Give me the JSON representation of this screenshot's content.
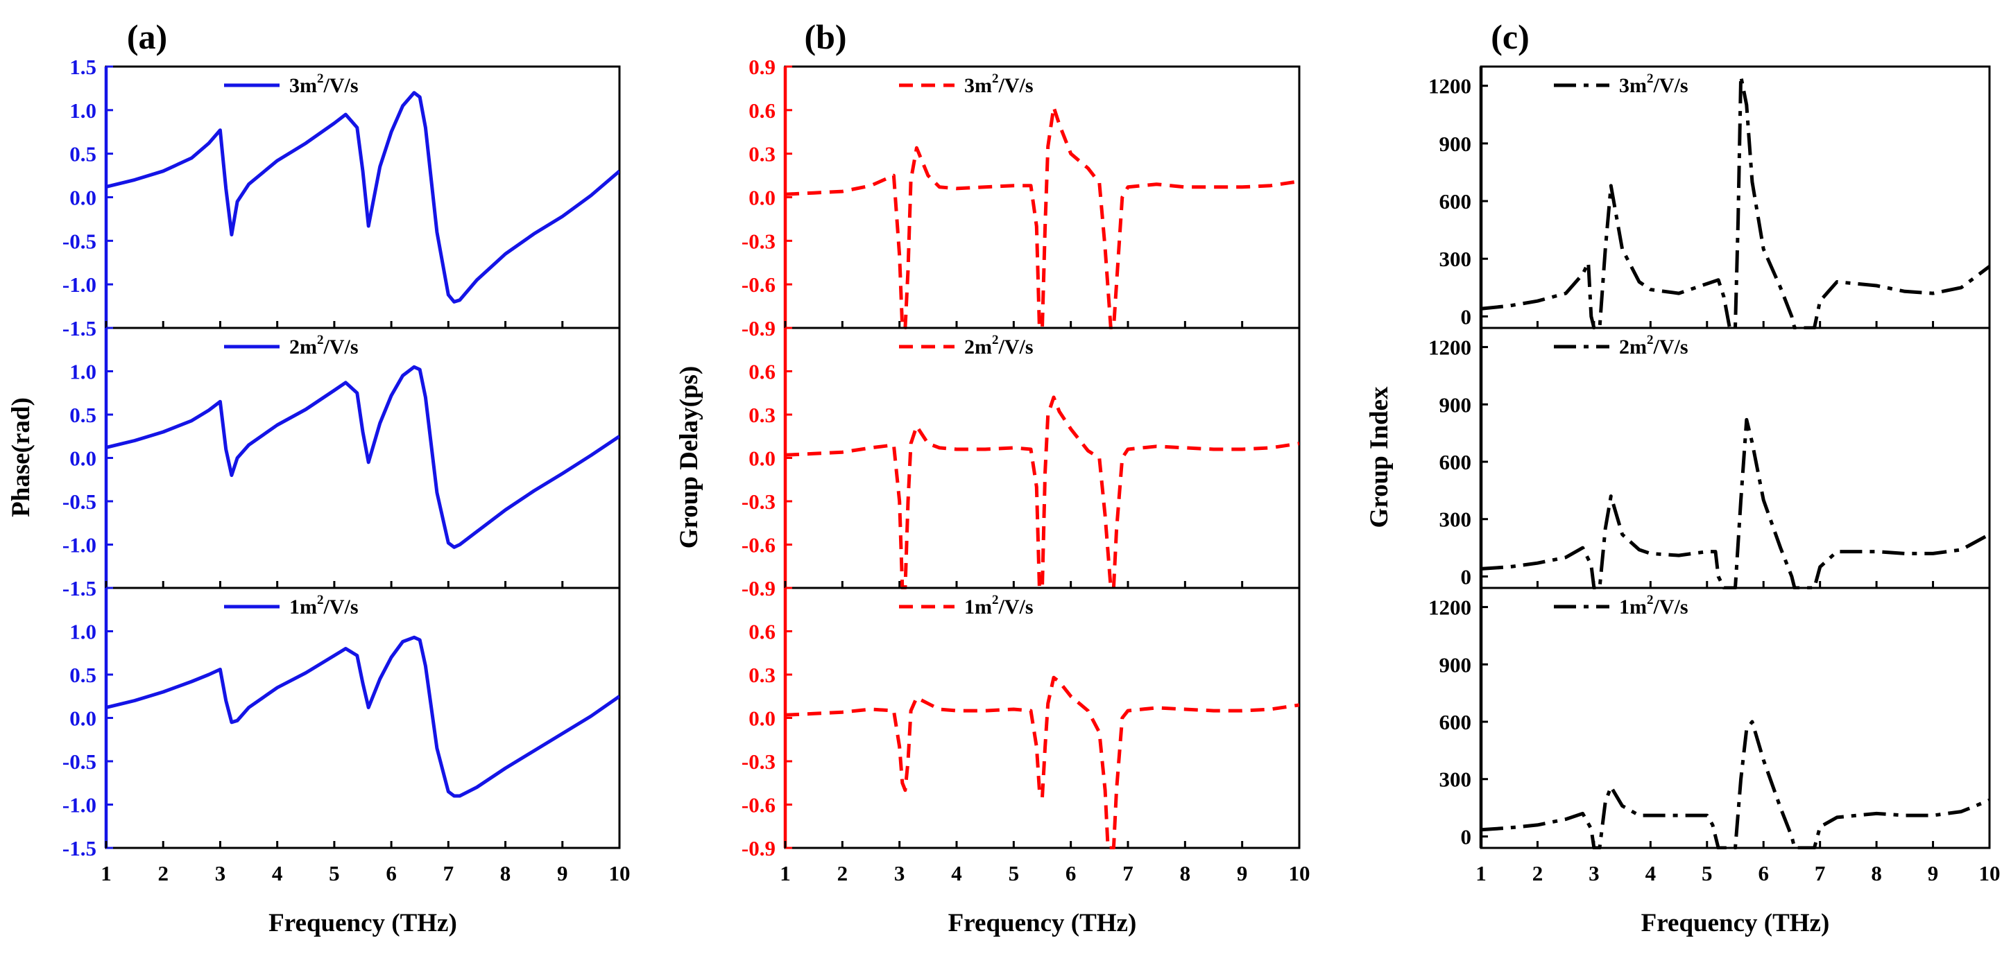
{
  "chart_data": [
    {
      "type": "line",
      "panel_label": "(a)",
      "xlabel": "Frequency (THz)",
      "ylabel": "Phase(rad)",
      "color": "#1414e6",
      "dash": "solid",
      "xlim": [
        1,
        10
      ],
      "ylim": [
        -1.5,
        1.5
      ],
      "xticks": [
        "1",
        "2",
        "3",
        "4",
        "5",
        "6",
        "7",
        "8",
        "9",
        "10"
      ],
      "yticks": [
        "-1.5",
        "-1.0",
        "-0.5",
        "0.0",
        "0.5",
        "1.0",
        "1.5"
      ],
      "yvals": [
        -1.5,
        -1.0,
        -0.5,
        0.0,
        0.5,
        1.0,
        1.5
      ],
      "subplots": [
        {
          "legend": {
            "main": "3m",
            "sup": "2",
            "rest": "/V/s"
          },
          "x": [
            1.0,
            1.5,
            2.0,
            2.5,
            2.8,
            3.0,
            3.1,
            3.2,
            3.3,
            3.5,
            4.0,
            4.5,
            5.0,
            5.2,
            5.4,
            5.5,
            5.6,
            5.8,
            6.0,
            6.2,
            6.4,
            6.5,
            6.6,
            6.8,
            7.0,
            7.1,
            7.2,
            7.5,
            8.0,
            8.5,
            9.0,
            9.5,
            10.0
          ],
          "y": [
            0.12,
            0.2,
            0.3,
            0.45,
            0.62,
            0.77,
            0.1,
            -0.43,
            -0.05,
            0.15,
            0.42,
            0.62,
            0.85,
            0.95,
            0.8,
            0.3,
            -0.33,
            0.35,
            0.75,
            1.05,
            1.2,
            1.15,
            0.8,
            -0.4,
            -1.12,
            -1.2,
            -1.18,
            -0.95,
            -0.65,
            -0.42,
            -0.22,
            0.02,
            0.3
          ]
        },
        {
          "legend": {
            "main": "2m",
            "sup": "2",
            "rest": "/V/s"
          },
          "x": [
            1.0,
            1.5,
            2.0,
            2.5,
            2.8,
            3.0,
            3.1,
            3.2,
            3.3,
            3.5,
            4.0,
            4.5,
            5.0,
            5.2,
            5.4,
            5.5,
            5.6,
            5.8,
            6.0,
            6.2,
            6.4,
            6.5,
            6.6,
            6.8,
            7.0,
            7.1,
            7.2,
            7.5,
            8.0,
            8.5,
            9.0,
            9.5,
            10.0
          ],
          "y": [
            0.12,
            0.2,
            0.3,
            0.43,
            0.55,
            0.65,
            0.1,
            -0.2,
            0.0,
            0.15,
            0.38,
            0.56,
            0.78,
            0.87,
            0.75,
            0.3,
            -0.05,
            0.4,
            0.72,
            0.95,
            1.05,
            1.02,
            0.7,
            -0.4,
            -0.98,
            -1.03,
            -1.0,
            -0.85,
            -0.6,
            -0.38,
            -0.18,
            0.03,
            0.25
          ]
        },
        {
          "legend": {
            "main": "1m",
            "sup": "2",
            "rest": "/V/s"
          },
          "x": [
            1.0,
            1.5,
            2.0,
            2.5,
            2.8,
            3.0,
            3.1,
            3.2,
            3.3,
            3.5,
            4.0,
            4.5,
            5.0,
            5.2,
            5.4,
            5.5,
            5.6,
            5.8,
            6.0,
            6.2,
            6.4,
            6.5,
            6.6,
            6.8,
            7.0,
            7.1,
            7.2,
            7.5,
            8.0,
            8.5,
            9.0,
            9.5,
            10.0
          ],
          "y": [
            0.12,
            0.2,
            0.3,
            0.42,
            0.5,
            0.56,
            0.2,
            -0.05,
            -0.03,
            0.12,
            0.35,
            0.52,
            0.72,
            0.8,
            0.72,
            0.4,
            0.12,
            0.45,
            0.7,
            0.88,
            0.93,
            0.9,
            0.6,
            -0.35,
            -0.85,
            -0.9,
            -0.9,
            -0.8,
            -0.58,
            -0.38,
            -0.18,
            0.02,
            0.25
          ]
        }
      ]
    },
    {
      "type": "line",
      "panel_label": "(b)",
      "xlabel": "Frequency (THz)",
      "ylabel": "Group Delay(ps)",
      "color": "#ff0000",
      "dash": "dashed",
      "xlim": [
        1,
        10
      ],
      "ylim": [
        -0.9,
        0.9
      ],
      "xticks": [
        "1",
        "2",
        "3",
        "4",
        "5",
        "6",
        "7",
        "8",
        "9",
        "10"
      ],
      "yticks": [
        "-0.9",
        "-0.6",
        "-0.3",
        "0.0",
        "0.3",
        "0.6",
        "0.9"
      ],
      "yvals": [
        -0.9,
        -0.6,
        -0.3,
        0.0,
        0.3,
        0.6,
        0.9
      ],
      "subplots": [
        {
          "legend": {
            "main": "3m",
            "sup": "2",
            "rest": "/V/s"
          },
          "x": [
            1.0,
            1.5,
            2.0,
            2.5,
            2.9,
            3.0,
            3.05,
            3.1,
            3.15,
            3.2,
            3.3,
            3.5,
            3.7,
            4.0,
            4.5,
            5.0,
            5.3,
            5.4,
            5.45,
            5.5,
            5.55,
            5.6,
            5.7,
            5.8,
            6.0,
            6.3,
            6.5,
            6.6,
            6.7,
            6.75,
            6.8,
            6.9,
            7.0,
            7.5,
            8.0,
            8.5,
            9.0,
            9.5,
            10.0
          ],
          "y": [
            0.02,
            0.03,
            0.04,
            0.08,
            0.15,
            -0.4,
            -0.9,
            -0.9,
            -0.5,
            0.12,
            0.34,
            0.15,
            0.07,
            0.06,
            0.07,
            0.08,
            0.08,
            -0.2,
            -0.9,
            -0.9,
            -0.2,
            0.35,
            0.62,
            0.5,
            0.3,
            0.2,
            0.1,
            -0.35,
            -0.9,
            -0.9,
            -0.6,
            0.0,
            0.07,
            0.09,
            0.07,
            0.07,
            0.07,
            0.08,
            0.11
          ]
        },
        {
          "legend": {
            "main": "2m",
            "sup": "2",
            "rest": "/V/s"
          },
          "x": [
            1.0,
            1.5,
            2.0,
            2.5,
            2.9,
            3.0,
            3.05,
            3.1,
            3.15,
            3.2,
            3.3,
            3.5,
            3.7,
            4.0,
            4.5,
            5.0,
            5.3,
            5.4,
            5.45,
            5.5,
            5.55,
            5.6,
            5.7,
            5.8,
            6.0,
            6.3,
            6.5,
            6.6,
            6.7,
            6.75,
            6.8,
            6.9,
            7.0,
            7.5,
            8.0,
            8.5,
            9.0,
            9.5,
            10.0
          ],
          "y": [
            0.02,
            0.03,
            0.04,
            0.07,
            0.09,
            -0.3,
            -0.9,
            -0.9,
            -0.3,
            0.1,
            0.22,
            0.1,
            0.07,
            0.06,
            0.06,
            0.07,
            0.06,
            -0.2,
            -0.9,
            -0.9,
            -0.1,
            0.3,
            0.42,
            0.32,
            0.2,
            0.05,
            0.0,
            -0.4,
            -0.9,
            -0.9,
            -0.5,
            0.0,
            0.06,
            0.08,
            0.07,
            0.06,
            0.06,
            0.07,
            0.1
          ]
        },
        {
          "legend": {
            "main": "1m",
            "sup": "2",
            "rest": "/V/s"
          },
          "x": [
            1.0,
            1.5,
            2.0,
            2.5,
            2.9,
            3.0,
            3.05,
            3.1,
            3.15,
            3.2,
            3.3,
            3.5,
            3.7,
            4.0,
            4.5,
            5.0,
            5.3,
            5.4,
            5.45,
            5.5,
            5.55,
            5.6,
            5.7,
            5.8,
            6.0,
            6.3,
            6.5,
            6.6,
            6.65,
            6.7,
            6.75,
            6.8,
            6.9,
            7.0,
            7.5,
            8.0,
            8.5,
            9.0,
            9.5,
            10.0
          ],
          "y": [
            0.02,
            0.03,
            0.04,
            0.06,
            0.05,
            -0.2,
            -0.45,
            -0.5,
            -0.3,
            0.05,
            0.14,
            0.1,
            0.06,
            0.05,
            0.05,
            0.06,
            0.05,
            -0.2,
            -0.5,
            -0.55,
            -0.2,
            0.1,
            0.28,
            0.25,
            0.15,
            0.05,
            -0.1,
            -0.5,
            -0.9,
            -0.9,
            -0.9,
            -0.5,
            0.0,
            0.05,
            0.07,
            0.06,
            0.05,
            0.05,
            0.06,
            0.09
          ]
        }
      ]
    },
    {
      "type": "line",
      "panel_label": "(c)",
      "xlabel": "Frequency (THz)",
      "ylabel": "Group Index",
      "color": "#000000",
      "dash": "dash-dot",
      "xlim": [
        1,
        10
      ],
      "ylim": [
        -60,
        1300
      ],
      "xticks": [
        "1",
        "2",
        "3",
        "4",
        "5",
        "6",
        "7",
        "8",
        "9",
        "10"
      ],
      "yticks": [
        "0",
        "300",
        "600",
        "900",
        "1200"
      ],
      "yvals": [
        0,
        300,
        600,
        900,
        1200
      ],
      "subplots": [
        {
          "legend": {
            "main": "3m",
            "sup": "2",
            "rest": "/V/s"
          },
          "x": [
            1.0,
            1.5,
            2.0,
            2.5,
            2.8,
            2.9,
            2.95,
            3.0,
            3.1,
            3.2,
            3.3,
            3.5,
            3.8,
            4.0,
            4.5,
            5.0,
            5.2,
            5.3,
            5.4,
            5.5,
            5.55,
            5.6,
            5.7,
            5.8,
            6.0,
            6.3,
            6.5,
            6.55,
            6.6,
            6.9,
            7.0,
            7.3,
            8.0,
            8.5,
            9.0,
            9.5,
            10.0
          ],
          "y": [
            40,
            55,
            80,
            120,
            220,
            280,
            0,
            -60,
            -60,
            350,
            680,
            350,
            180,
            140,
            120,
            170,
            190,
            100,
            -60,
            -60,
            500,
            1250,
            1100,
            700,
            350,
            150,
            0,
            -60,
            -60,
            -60,
            80,
            180,
            160,
            130,
            120,
            150,
            260
          ]
        },
        {
          "legend": {
            "main": "2m",
            "sup": "2",
            "rest": "/V/s"
          },
          "x": [
            1.0,
            1.5,
            2.0,
            2.5,
            2.8,
            2.95,
            3.0,
            3.1,
            3.2,
            3.3,
            3.5,
            3.8,
            4.0,
            4.5,
            5.0,
            5.15,
            5.2,
            5.3,
            5.5,
            5.6,
            5.7,
            5.8,
            6.0,
            6.3,
            6.5,
            6.55,
            6.9,
            7.0,
            7.3,
            8.0,
            8.5,
            9.0,
            9.5,
            10.0
          ],
          "y": [
            40,
            50,
            70,
            100,
            150,
            60,
            -60,
            -60,
            250,
            420,
            220,
            140,
            120,
            110,
            130,
            130,
            0,
            -60,
            -60,
            400,
            820,
            700,
            400,
            150,
            0,
            -60,
            -60,
            50,
            130,
            130,
            120,
            120,
            140,
            220
          ]
        },
        {
          "legend": {
            "main": "1m",
            "sup": "2",
            "rest": "/V/s"
          },
          "x": [
            1.0,
            1.5,
            2.0,
            2.5,
            2.8,
            2.95,
            3.0,
            3.1,
            3.2,
            3.3,
            3.5,
            3.8,
            4.0,
            4.5,
            5.0,
            5.1,
            5.2,
            5.3,
            5.5,
            5.6,
            5.7,
            5.8,
            6.0,
            6.3,
            6.5,
            6.55,
            6.9,
            7.0,
            7.3,
            8.0,
            8.5,
            9.0,
            9.5,
            10.0
          ],
          "y": [
            35,
            45,
            60,
            90,
            120,
            40,
            -60,
            -60,
            180,
            260,
            160,
            110,
            110,
            110,
            110,
            60,
            -60,
            -60,
            -60,
            300,
            560,
            600,
            400,
            150,
            0,
            -60,
            -60,
            50,
            100,
            120,
            110,
            110,
            130,
            190
          ]
        }
      ]
    }
  ]
}
